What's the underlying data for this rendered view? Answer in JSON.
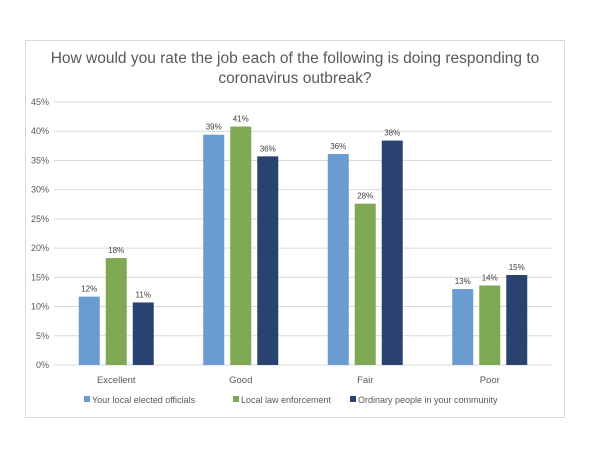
{
  "chart_data": {
    "type": "bar",
    "title": "How would you rate the job each of the following is doing responding to coronavirus outbreak?",
    "xlabel": "",
    "ylabel": "",
    "ylim": [
      0,
      45
    ],
    "yticks": [
      "0%",
      "5%",
      "10%",
      "15%",
      "20%",
      "25%",
      "30%",
      "35%",
      "40%",
      "45%"
    ],
    "grid": true,
    "legend_position": "bottom",
    "categories": [
      "Excellent",
      "Good",
      "Fair",
      "Poor"
    ],
    "series": [
      {
        "name": "Your local elected officials",
        "color": "#6a9bd1",
        "values": [
          11.7,
          39.4,
          36.1,
          13.0
        ],
        "labels": [
          "12%",
          "39%",
          "36%",
          "13%"
        ]
      },
      {
        "name": "Local law enforcement",
        "color": "#7ea852",
        "values": [
          18.3,
          40.8,
          27.6,
          13.6
        ],
        "labels": [
          "18%",
          "41%",
          "28%",
          "14%"
        ]
      },
      {
        "name": "Ordinary people in your community",
        "color": "#2a4270",
        "values": [
          10.7,
          35.7,
          38.4,
          15.4
        ],
        "labels": [
          "11%",
          "36%",
          "38%",
          "15%"
        ]
      }
    ]
  }
}
